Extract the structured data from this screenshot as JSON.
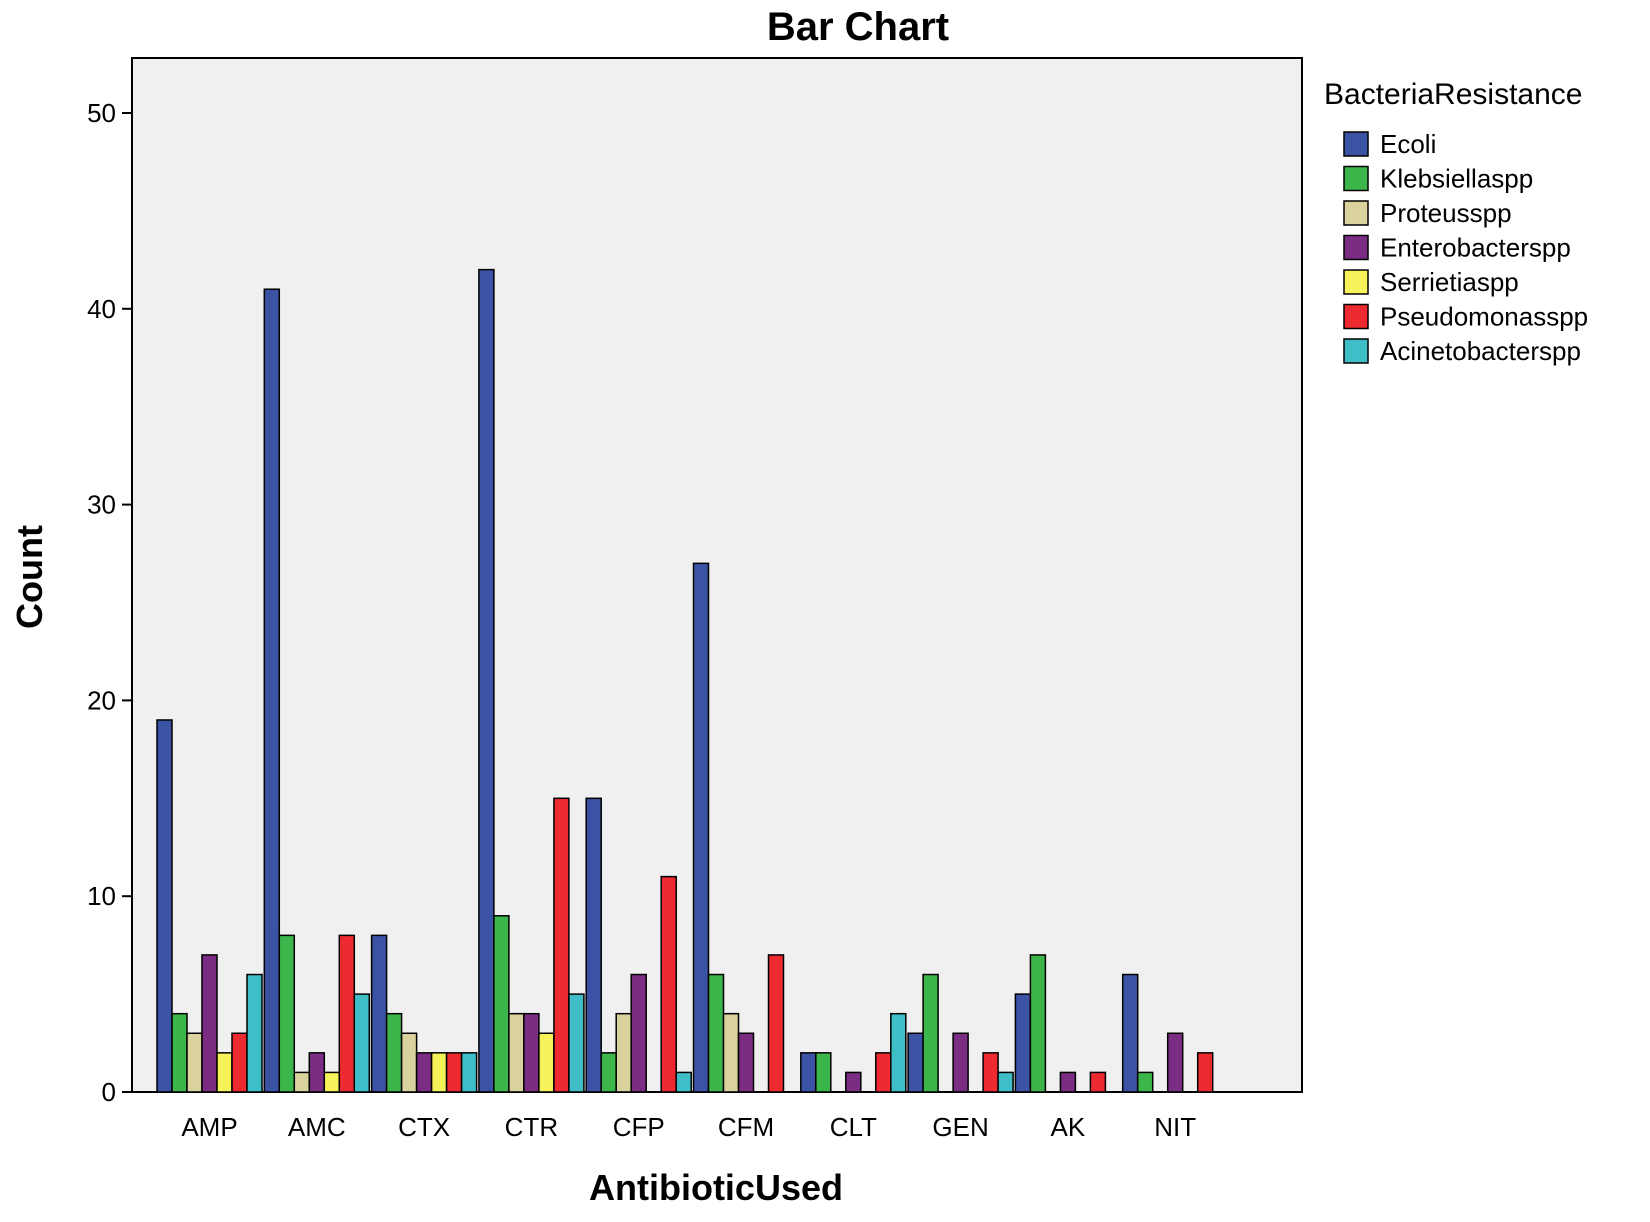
{
  "chart_data": {
    "type": "bar",
    "title": "Bar Chart",
    "xlabel": "AntibioticUsed",
    "ylabel": "Count",
    "ylim": [
      0,
      52.5
    ],
    "yticks": [
      0,
      10,
      20,
      30,
      40,
      50
    ],
    "grid": false,
    "legend_title": "BacteriaResistance",
    "legend_position": "right",
    "categories": [
      "AMP",
      "AMC",
      "CTX",
      "CTR",
      "CFP",
      "CFM",
      "CLT",
      "GEN",
      "AK",
      "NIT"
    ],
    "series": [
      {
        "name": "Ecoli",
        "color": "#3A53A4",
        "values": [
          19,
          41,
          8,
          42,
          15,
          27,
          2,
          3,
          5,
          6
        ]
      },
      {
        "name": "Klebsiellaspp",
        "color": "#3CB54A",
        "values": [
          4,
          8,
          4,
          9,
          2,
          6,
          2,
          6,
          7,
          1
        ]
      },
      {
        "name": "Proteusspp",
        "color": "#D9D29D",
        "values": [
          3,
          1,
          3,
          4,
          4,
          4,
          0,
          0,
          0,
          0
        ]
      },
      {
        "name": "Enterobacterspp",
        "color": "#7B2D83",
        "values": [
          7,
          2,
          2,
          4,
          6,
          3,
          1,
          3,
          1,
          3
        ]
      },
      {
        "name": "Serrietiaspp",
        "color": "#F6F25A",
        "values": [
          2,
          1,
          2,
          3,
          0,
          0,
          0,
          0,
          0,
          0
        ]
      },
      {
        "name": "Pseudomonasspp",
        "color": "#EE2A31",
        "values": [
          3,
          8,
          2,
          15,
          11,
          7,
          2,
          2,
          1,
          2
        ]
      },
      {
        "name": "Acinetobacterspp",
        "color": "#40BEC8",
        "values": [
          6,
          5,
          2,
          5,
          1,
          0,
          4,
          1,
          0,
          0
        ]
      }
    ],
    "plot_background": "#F0F0F0"
  }
}
